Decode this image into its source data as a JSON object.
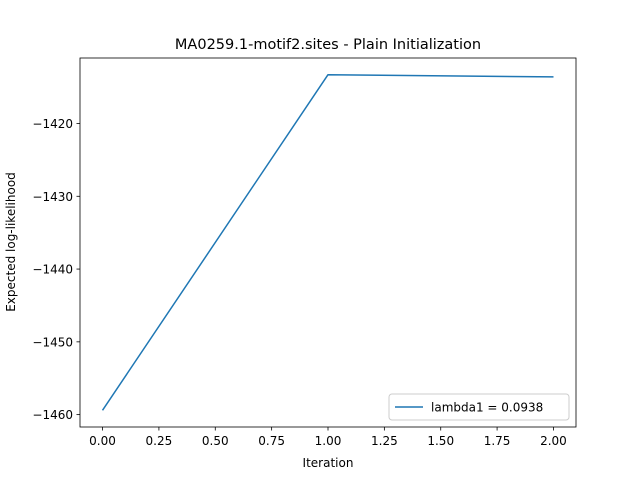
{
  "chart_data": {
    "type": "line",
    "title": "MA0259.1-motif2.sites - Plain Initialization",
    "xlabel": "Iteration",
    "ylabel": "Expected log-likelihood",
    "x": [
      0,
      1,
      2
    ],
    "series": [
      {
        "name": "lambda1 = 0.0938",
        "values": [
          -1459.4,
          -1413.3,
          -1413.6
        ],
        "color": "#1f77b4"
      }
    ],
    "xlim": [
      -0.1,
      2.1
    ],
    "ylim": [
      -1461.7,
      -1411.0
    ],
    "xticks": [
      0.0,
      0.25,
      0.5,
      0.75,
      1.0,
      1.25,
      1.5,
      1.75,
      2.0
    ],
    "xtick_labels": [
      "0.00",
      "0.25",
      "0.50",
      "0.75",
      "1.00",
      "1.25",
      "1.50",
      "1.75",
      "2.00"
    ],
    "yticks": [
      -1460,
      -1450,
      -1440,
      -1430,
      -1420
    ],
    "ytick_labels": [
      "−1460",
      "−1450",
      "−1440",
      "−1430",
      "−1420"
    ],
    "grid": false,
    "legend_position": "lower-right"
  }
}
